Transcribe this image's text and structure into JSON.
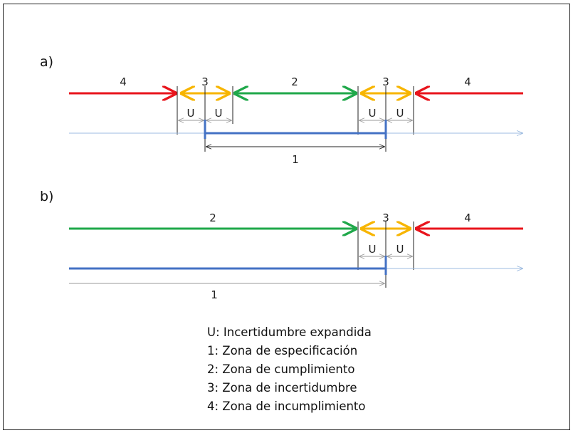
{
  "panels": {
    "a": {
      "label": "a)",
      "zone_labels": {
        "left_4": "4",
        "left_3": "3",
        "center_2": "2",
        "right_3": "3",
        "right_4": "4"
      },
      "u_labels": [
        "U",
        "U",
        "U",
        "U"
      ],
      "spec_label": "1"
    },
    "b": {
      "label": "b)",
      "zone_labels": {
        "left_2": "2",
        "right_3": "3",
        "right_4": "4"
      },
      "u_labels": [
        "U",
        "U"
      ],
      "spec_label": "1"
    }
  },
  "legend": [
    "U: Incertidumbre expandida",
    "1: Zona de especificación",
    "2: Zona de cumplimiento",
    "3: Zona de incertidumbre",
    "4: Zona de incumplimiento"
  ],
  "colors": {
    "red": "#e8141c",
    "orange": "#f7b500",
    "green": "#1fa84a",
    "blue": "#4472c4",
    "light_blue": "#9dbbe0",
    "black": "#222222",
    "gray": "#9a9a9a"
  }
}
